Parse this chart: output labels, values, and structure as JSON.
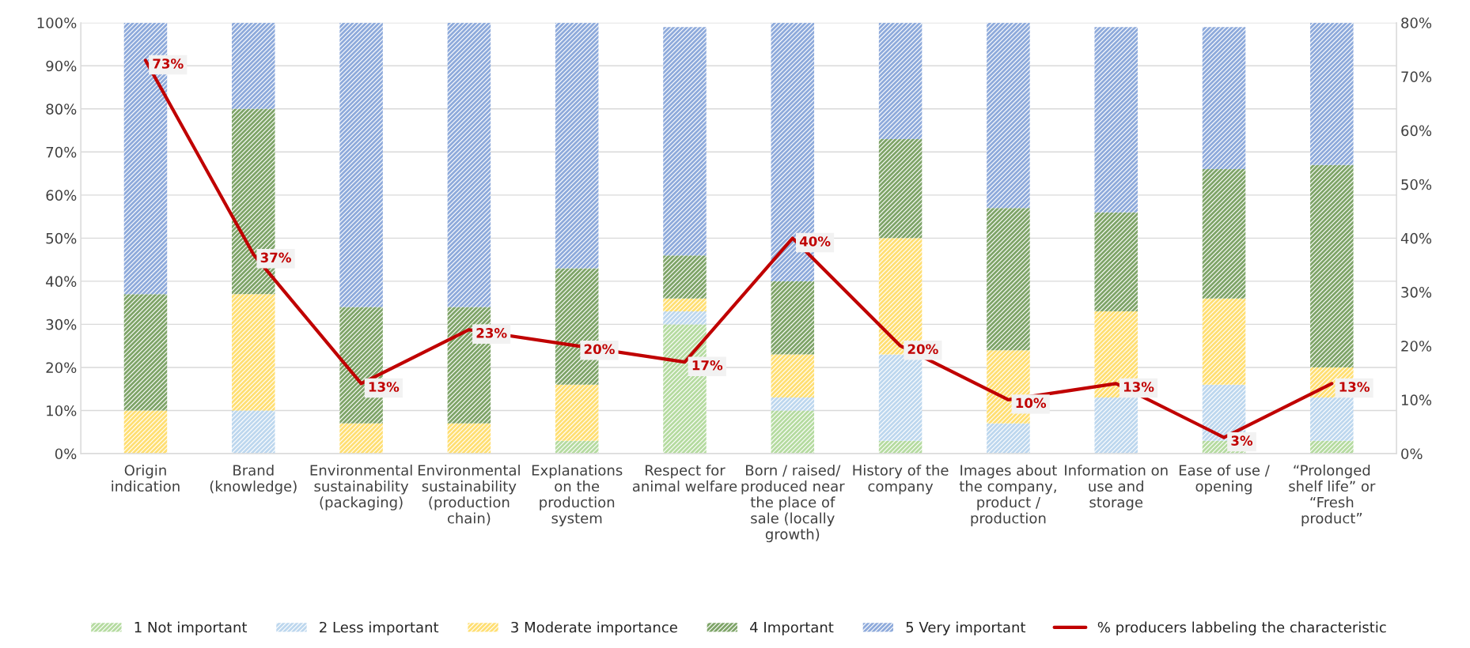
{
  "chart_data": {
    "type": "bar",
    "stacked": true,
    "categories": [
      "Origin\nindication",
      "Brand\n(knowledge)",
      "Environmental\nsustainability\n(packaging)",
      "Environmental\nsustainability\n(production\nchain)",
      "Explanations\non the\nproduction\nsystem",
      "Respect for\nanimal welfare",
      "Born / raised/\nproduced near\nthe place of\nsale (locally\ngrowth)",
      "History of the\ncompany",
      "Images about\nthe company,\nproduct /\nproduction",
      "Information on\nuse and\nstorage",
      "Ease of use /\nopening",
      "“Prolonged\nshelf life” or\n“Fresh\nproduct”"
    ],
    "series": [
      {
        "name": "1 Not important",
        "color": "#b5dba0",
        "values": [
          0,
          0,
          0,
          0,
          3,
          30,
          10,
          3,
          0,
          0,
          3,
          3
        ]
      },
      {
        "name": "2 Less important",
        "color": "#bdd7ee",
        "values": [
          0,
          10,
          0,
          0,
          0,
          3,
          3,
          20,
          7,
          13,
          13,
          10
        ]
      },
      {
        "name": "3 Moderate importance",
        "color": "#ffdf73",
        "values": [
          10,
          27,
          7,
          7,
          13,
          3,
          10,
          27,
          17,
          20,
          20,
          7
        ]
      },
      {
        "name": "4 Important",
        "color": "#7ea468",
        "values": [
          27,
          43,
          27,
          27,
          27,
          10,
          17,
          23,
          33,
          23,
          30,
          47
        ]
      },
      {
        "name": "5 Very important",
        "color": "#8eaadb",
        "values": [
          63,
          20,
          66,
          66,
          57,
          53,
          60,
          27,
          43,
          43,
          33,
          33
        ]
      },
      {
        "name": "% producers labbeling the characteristic",
        "type": "line",
        "axis": "y2",
        "color": "#c00000",
        "values": [
          73,
          37,
          13,
          23,
          20,
          17,
          40,
          20,
          10,
          13,
          3,
          13
        ],
        "value_labels": [
          "73%",
          "37%",
          "13%",
          "23%",
          "20%",
          "17%",
          "40%",
          "20%",
          "10%",
          "13%",
          "3%",
          "13%"
        ]
      }
    ],
    "ylim": [
      0,
      100
    ],
    "yticks": [
      {
        "value": 0,
        "label": "0%"
      },
      {
        "value": 10,
        "label": "10%"
      },
      {
        "value": 20,
        "label": "20%"
      },
      {
        "value": 30,
        "label": "30%"
      },
      {
        "value": 40,
        "label": "40%"
      },
      {
        "value": 50,
        "label": "50%"
      },
      {
        "value": 60,
        "label": "60%"
      },
      {
        "value": 70,
        "label": "70%"
      },
      {
        "value": 80,
        "label": "80%"
      },
      {
        "value": 90,
        "label": "90%"
      },
      {
        "value": 100,
        "label": "100%"
      }
    ],
    "y2lim": [
      0,
      80
    ],
    "y2ticks": [
      {
        "value": 0,
        "label": "0%"
      },
      {
        "value": 10,
        "label": "10%"
      },
      {
        "value": 20,
        "label": "20%"
      },
      {
        "value": 30,
        "label": "30%"
      },
      {
        "value": 40,
        "label": "40%"
      },
      {
        "value": 50,
        "label": "50%"
      },
      {
        "value": 60,
        "label": "60%"
      },
      {
        "value": 70,
        "label": "70%"
      },
      {
        "value": 80,
        "label": "80%"
      }
    ],
    "grid": "y",
    "legend": "bottom",
    "marker": "none",
    "line_style": "solid"
  }
}
